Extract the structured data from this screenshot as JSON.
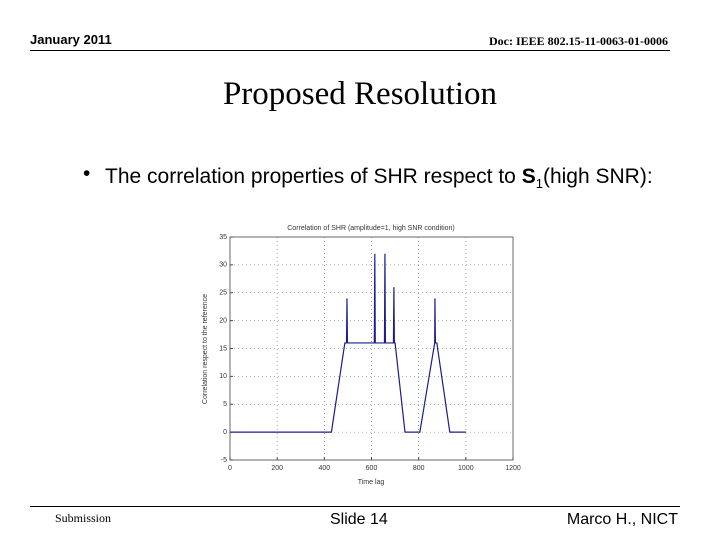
{
  "header": {
    "date": "January 2011",
    "doc": "Doc: IEEE 802.15-11-0063-01-0006"
  },
  "title": "Proposed Resolution",
  "bullet": {
    "text1": "The correlation properties of SHR respect to ",
    "symbol": "S",
    "subscript": "1",
    "text2": "(high SNR):"
  },
  "chart_data": {
    "type": "line",
    "title": "Correlation of SHR (amplitude=1, high SNR condition)",
    "x_label": "Time lag",
    "y_label": "Correlation respect to the reference",
    "xlim": [
      0,
      1200
    ],
    "xticks": [
      0,
      200,
      400,
      600,
      800,
      1000,
      1200
    ],
    "ylim": [
      -5,
      35
    ],
    "yticks": [
      -5,
      0,
      5,
      10,
      15,
      20,
      25,
      30,
      35
    ],
    "grid": true,
    "series": [
      {
        "color": "#1c1c8c",
        "x": [
          0,
          430,
          487,
          494,
          496,
          498,
          612,
          614,
          616,
          655,
          657,
          659,
          693,
          695,
          697,
          700,
          742,
          805,
          868,
          869,
          871,
          877,
          932,
          1000
        ],
        "values": [
          0,
          0,
          16,
          16,
          24,
          16,
          16,
          32,
          16,
          16,
          32,
          16,
          16,
          26,
          16,
          16,
          0,
          0,
          16,
          24,
          16,
          16,
          0,
          0
        ]
      }
    ]
  },
  "footer": {
    "left": "Submission",
    "center": "Slide 14",
    "right": "Marco H., NICT"
  }
}
